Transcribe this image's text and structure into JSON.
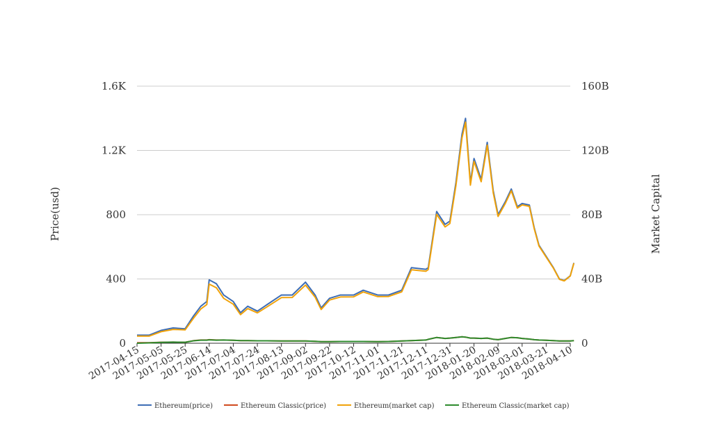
{
  "chart_data": {
    "type": "line",
    "ylabel": "Price(usd)",
    "y2label": "Market Capital",
    "ylim": [
      0,
      1600
    ],
    "y2lim": [
      0,
      160000000000
    ],
    "grid": true,
    "legend_position": "bottom",
    "yticks": [
      "0",
      "400",
      "800",
      "1.2K",
      "1.6K"
    ],
    "y2ticks": [
      "0",
      "40B",
      "80B",
      "120B",
      "160B"
    ],
    "xticks": [
      "2017-04-15",
      "2017-05-05",
      "2017-05-25",
      "2017-06-14",
      "2017-07-04",
      "2017-07-24",
      "2017-08-13",
      "2017-09-02",
      "2017-09-22",
      "2017-10-12",
      "2017-11-01",
      "2017-11-21",
      "2017-12-11",
      "2017-12-31",
      "2018-01-20",
      "2018-02-09",
      "2018-03-01",
      "2018-03-21",
      "2018-04-10"
    ],
    "x": [
      "2017-04-15",
      "2017-04-25",
      "2017-05-05",
      "2017-05-15",
      "2017-05-25",
      "2017-06-01",
      "2017-06-07",
      "2017-06-12",
      "2017-06-14",
      "2017-06-20",
      "2017-06-26",
      "2017-07-04",
      "2017-07-10",
      "2017-07-16",
      "2017-07-24",
      "2017-08-01",
      "2017-08-13",
      "2017-08-22",
      "2017-09-02",
      "2017-09-10",
      "2017-09-15",
      "2017-09-22",
      "2017-10-01",
      "2017-10-12",
      "2017-10-20",
      "2017-11-01",
      "2017-11-10",
      "2017-11-21",
      "2017-11-29",
      "2017-12-11",
      "2017-12-13",
      "2017-12-20",
      "2017-12-27",
      "2017-12-31",
      "2018-01-05",
      "2018-01-10",
      "2018-01-13",
      "2018-01-17",
      "2018-01-20",
      "2018-01-26",
      "2018-01-31",
      "2018-02-05",
      "2018-02-09",
      "2018-02-15",
      "2018-02-20",
      "2018-02-25",
      "2018-03-01",
      "2018-03-07",
      "2018-03-11",
      "2018-03-15",
      "2018-03-21",
      "2018-03-27",
      "2018-04-01",
      "2018-04-05",
      "2018-04-10",
      "2018-04-13"
    ],
    "series": [
      {
        "name": "Ethereum(price)",
        "color": "#3d6db5",
        "axis": "left",
        "values": [
          50,
          50,
          80,
          95,
          90,
          170,
          230,
          260,
          395,
          370,
          300,
          260,
          190,
          230,
          200,
          240,
          300,
          300,
          380,
          300,
          220,
          280,
          300,
          300,
          330,
          300,
          300,
          330,
          470,
          460,
          470,
          820,
          740,
          760,
          1000,
          1300,
          1400,
          1000,
          1150,
          1020,
          1250,
          950,
          800,
          880,
          960,
          850,
          870,
          860,
          720,
          610,
          540,
          470,
          400,
          390,
          420,
          500
        ]
      },
      {
        "name": "Ethereum Classic(price)",
        "color": "#d04a1e",
        "axis": "left",
        "values": [
          3,
          3,
          6,
          7,
          6,
          16,
          20,
          20,
          22,
          20,
          20,
          18,
          16,
          16,
          15,
          15,
          14,
          14,
          14,
          12,
          10,
          10,
          11,
          11,
          11,
          10,
          11,
          14,
          16,
          20,
          24,
          36,
          30,
          32,
          36,
          40,
          38,
          32,
          32,
          30,
          32,
          25,
          22,
          30,
          36,
          34,
          30,
          26,
          22,
          20,
          18,
          16,
          14,
          14,
          14,
          16
        ]
      },
      {
        "name": "Ethereum(market cap)",
        "color": "#f0a20a",
        "axis": "right",
        "values": [
          4400000000,
          4400000000,
          7200000000,
          8600000000,
          8300000000,
          15600000000,
          21300000000,
          24100000000,
          36800000000,
          34500000000,
          28000000000,
          24300000000,
          17800000000,
          21600000000,
          18900000000,
          22600000000,
          28400000000,
          28500000000,
          36200000000,
          28700000000,
          21000000000,
          26900000000,
          28800000000,
          28900000000,
          31900000000,
          29000000000,
          29100000000,
          32000000000,
          45700000000,
          44800000000,
          45900000000,
          80200000000,
          72400000000,
          74500000000,
          98100000000,
          127700000000,
          137600000000,
          98400000000,
          113200000000,
          100500000000,
          123300000000,
          93700000000,
          78900000000,
          86900000000,
          94900000000,
          84100000000,
          86100000000,
          85200000000,
          71400000000,
          60500000000,
          53600000000,
          46700000000,
          39800000000,
          38800000000,
          41800000000,
          49800000000
        ]
      },
      {
        "name": "Ethereum Classic(market cap)",
        "color": "#2e8b2e",
        "axis": "right",
        "values": [
          0,
          200000000,
          500000000,
          700000000,
          600000000,
          1500000000,
          1900000000,
          1900000000,
          2100000000,
          1900000000,
          2000000000,
          1800000000,
          1600000000,
          1600000000,
          1500000000,
          1500000000,
          1400000000,
          1400000000,
          1400000000,
          1200000000,
          1000000000,
          1000000000,
          1100000000,
          1100000000,
          1100000000,
          1000000000,
          1100000000,
          1400000000,
          1600000000,
          2000000000,
          2400000000,
          3600000000,
          3000000000,
          3200000000,
          3600000000,
          4000000000,
          3800000000,
          3200000000,
          3200000000,
          3000000000,
          3200000000,
          2500000000,
          2200000000,
          3000000000,
          3600000000,
          3400000000,
          3000000000,
          2600000000,
          2200000000,
          2000000000,
          1800000000,
          1600000000,
          1400000000,
          1400000000,
          1400000000,
          1600000000
        ]
      }
    ]
  }
}
